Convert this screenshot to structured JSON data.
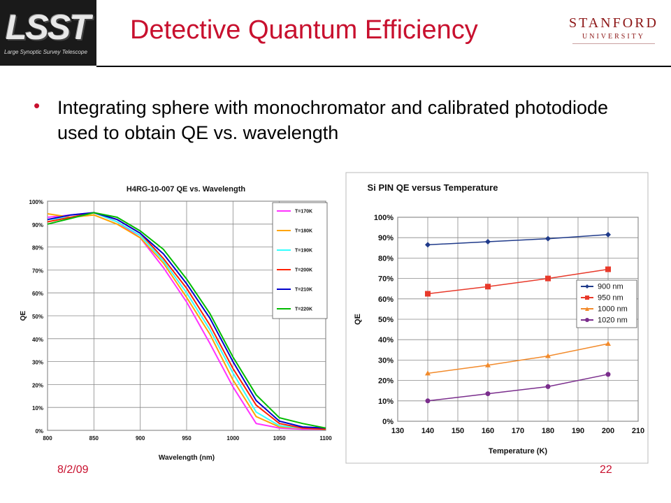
{
  "slide": {
    "title": "Detective Quantum Efficiency",
    "bullet": "Integrating sphere with monochromator and calibrated photodiode used to obtain QE vs. wavelength",
    "footer_date": "8/2/09",
    "page_number": "22"
  },
  "logo": {
    "text": "LSST",
    "subtitle": "Large Synoptic Survey Telescope"
  },
  "institution": {
    "name": "STANFORD",
    "sub": "UNIVERSITY"
  },
  "chart_data": [
    {
      "type": "line",
      "title": "H4RG-10-007 QE vs. Wavelength",
      "xlabel": "Wavelength (nm)",
      "ylabel": "QE",
      "xlim": [
        800,
        1100
      ],
      "ylim": [
        0,
        100
      ],
      "x_ticks": [
        "800",
        "850",
        "900",
        "950",
        "1000",
        "1050",
        "1100"
      ],
      "y_ticks": [
        "0%",
        "10%",
        "20%",
        "30%",
        "40%",
        "50%",
        "60%",
        "70%",
        "80%",
        "90%",
        "100%"
      ],
      "grid": true,
      "legend": "top-right",
      "x": [
        800,
        825,
        850,
        875,
        900,
        925,
        950,
        975,
        1000,
        1025,
        1050,
        1075,
        1100
      ],
      "series": [
        {
          "name": "T=170K",
          "color": "#ff33ff",
          "values": [
            93,
            94,
            95,
            91,
            84,
            71,
            56,
            38,
            19,
            3,
            1,
            0.5,
            0.5
          ]
        },
        {
          "name": "T=180K",
          "color": "#ffa500",
          "values": [
            94.5,
            93,
            94,
            90,
            84,
            73,
            58,
            42,
            22,
            6,
            1.5,
            1,
            0.5
          ]
        },
        {
          "name": "T=190K",
          "color": "#33ffff",
          "values": [
            92,
            93,
            95,
            91,
            85,
            74,
            60,
            44,
            25,
            8,
            2,
            1,
            0.5
          ]
        },
        {
          "name": "T=200K",
          "color": "#ff2200",
          "values": [
            91,
            93,
            95,
            92,
            86,
            75,
            62,
            46,
            27,
            11,
            3,
            1,
            0.5
          ]
        },
        {
          "name": "T=210K",
          "color": "#0000cc",
          "values": [
            92,
            94,
            95,
            92,
            86,
            77,
            64,
            49,
            30,
            13,
            4,
            1.5,
            1
          ]
        },
        {
          "name": "T=220K",
          "color": "#00bb00",
          "values": [
            90,
            92.5,
            95,
            93,
            87,
            79,
            66,
            51,
            32,
            15.5,
            5.5,
            3,
            1
          ]
        }
      ]
    },
    {
      "type": "line",
      "title": "Si PIN QE versus Temperature",
      "xlabel": "Temperature (K)",
      "ylabel": "QE",
      "xlim": [
        130,
        210
      ],
      "ylim": [
        0,
        100
      ],
      "x_ticks": [
        "130",
        "140",
        "150",
        "160",
        "170",
        "180",
        "190",
        "200",
        "210"
      ],
      "y_ticks": [
        "0%",
        "10%",
        "20%",
        "30%",
        "40%",
        "50%",
        "60%",
        "70%",
        "80%",
        "90%",
        "100%"
      ],
      "grid": true,
      "legend": "right",
      "x": [
        140,
        160,
        180,
        200
      ],
      "series": [
        {
          "name": "900 nm",
          "color": "#1f3a8a",
          "marker": "diamond",
          "values": [
            86.5,
            88,
            89.5,
            91.5
          ]
        },
        {
          "name": "950 nm",
          "color": "#e8392a",
          "marker": "square",
          "values": [
            62.5,
            66,
            70,
            74.5
          ]
        },
        {
          "name": "1000 nm",
          "color": "#f28a2a",
          "marker": "triangle",
          "values": [
            23.5,
            27.5,
            32,
            38
          ]
        },
        {
          "name": "1020 nm",
          "color": "#7a2d8c",
          "marker": "circle",
          "values": [
            10,
            13.5,
            17,
            23
          ]
        }
      ]
    }
  ]
}
